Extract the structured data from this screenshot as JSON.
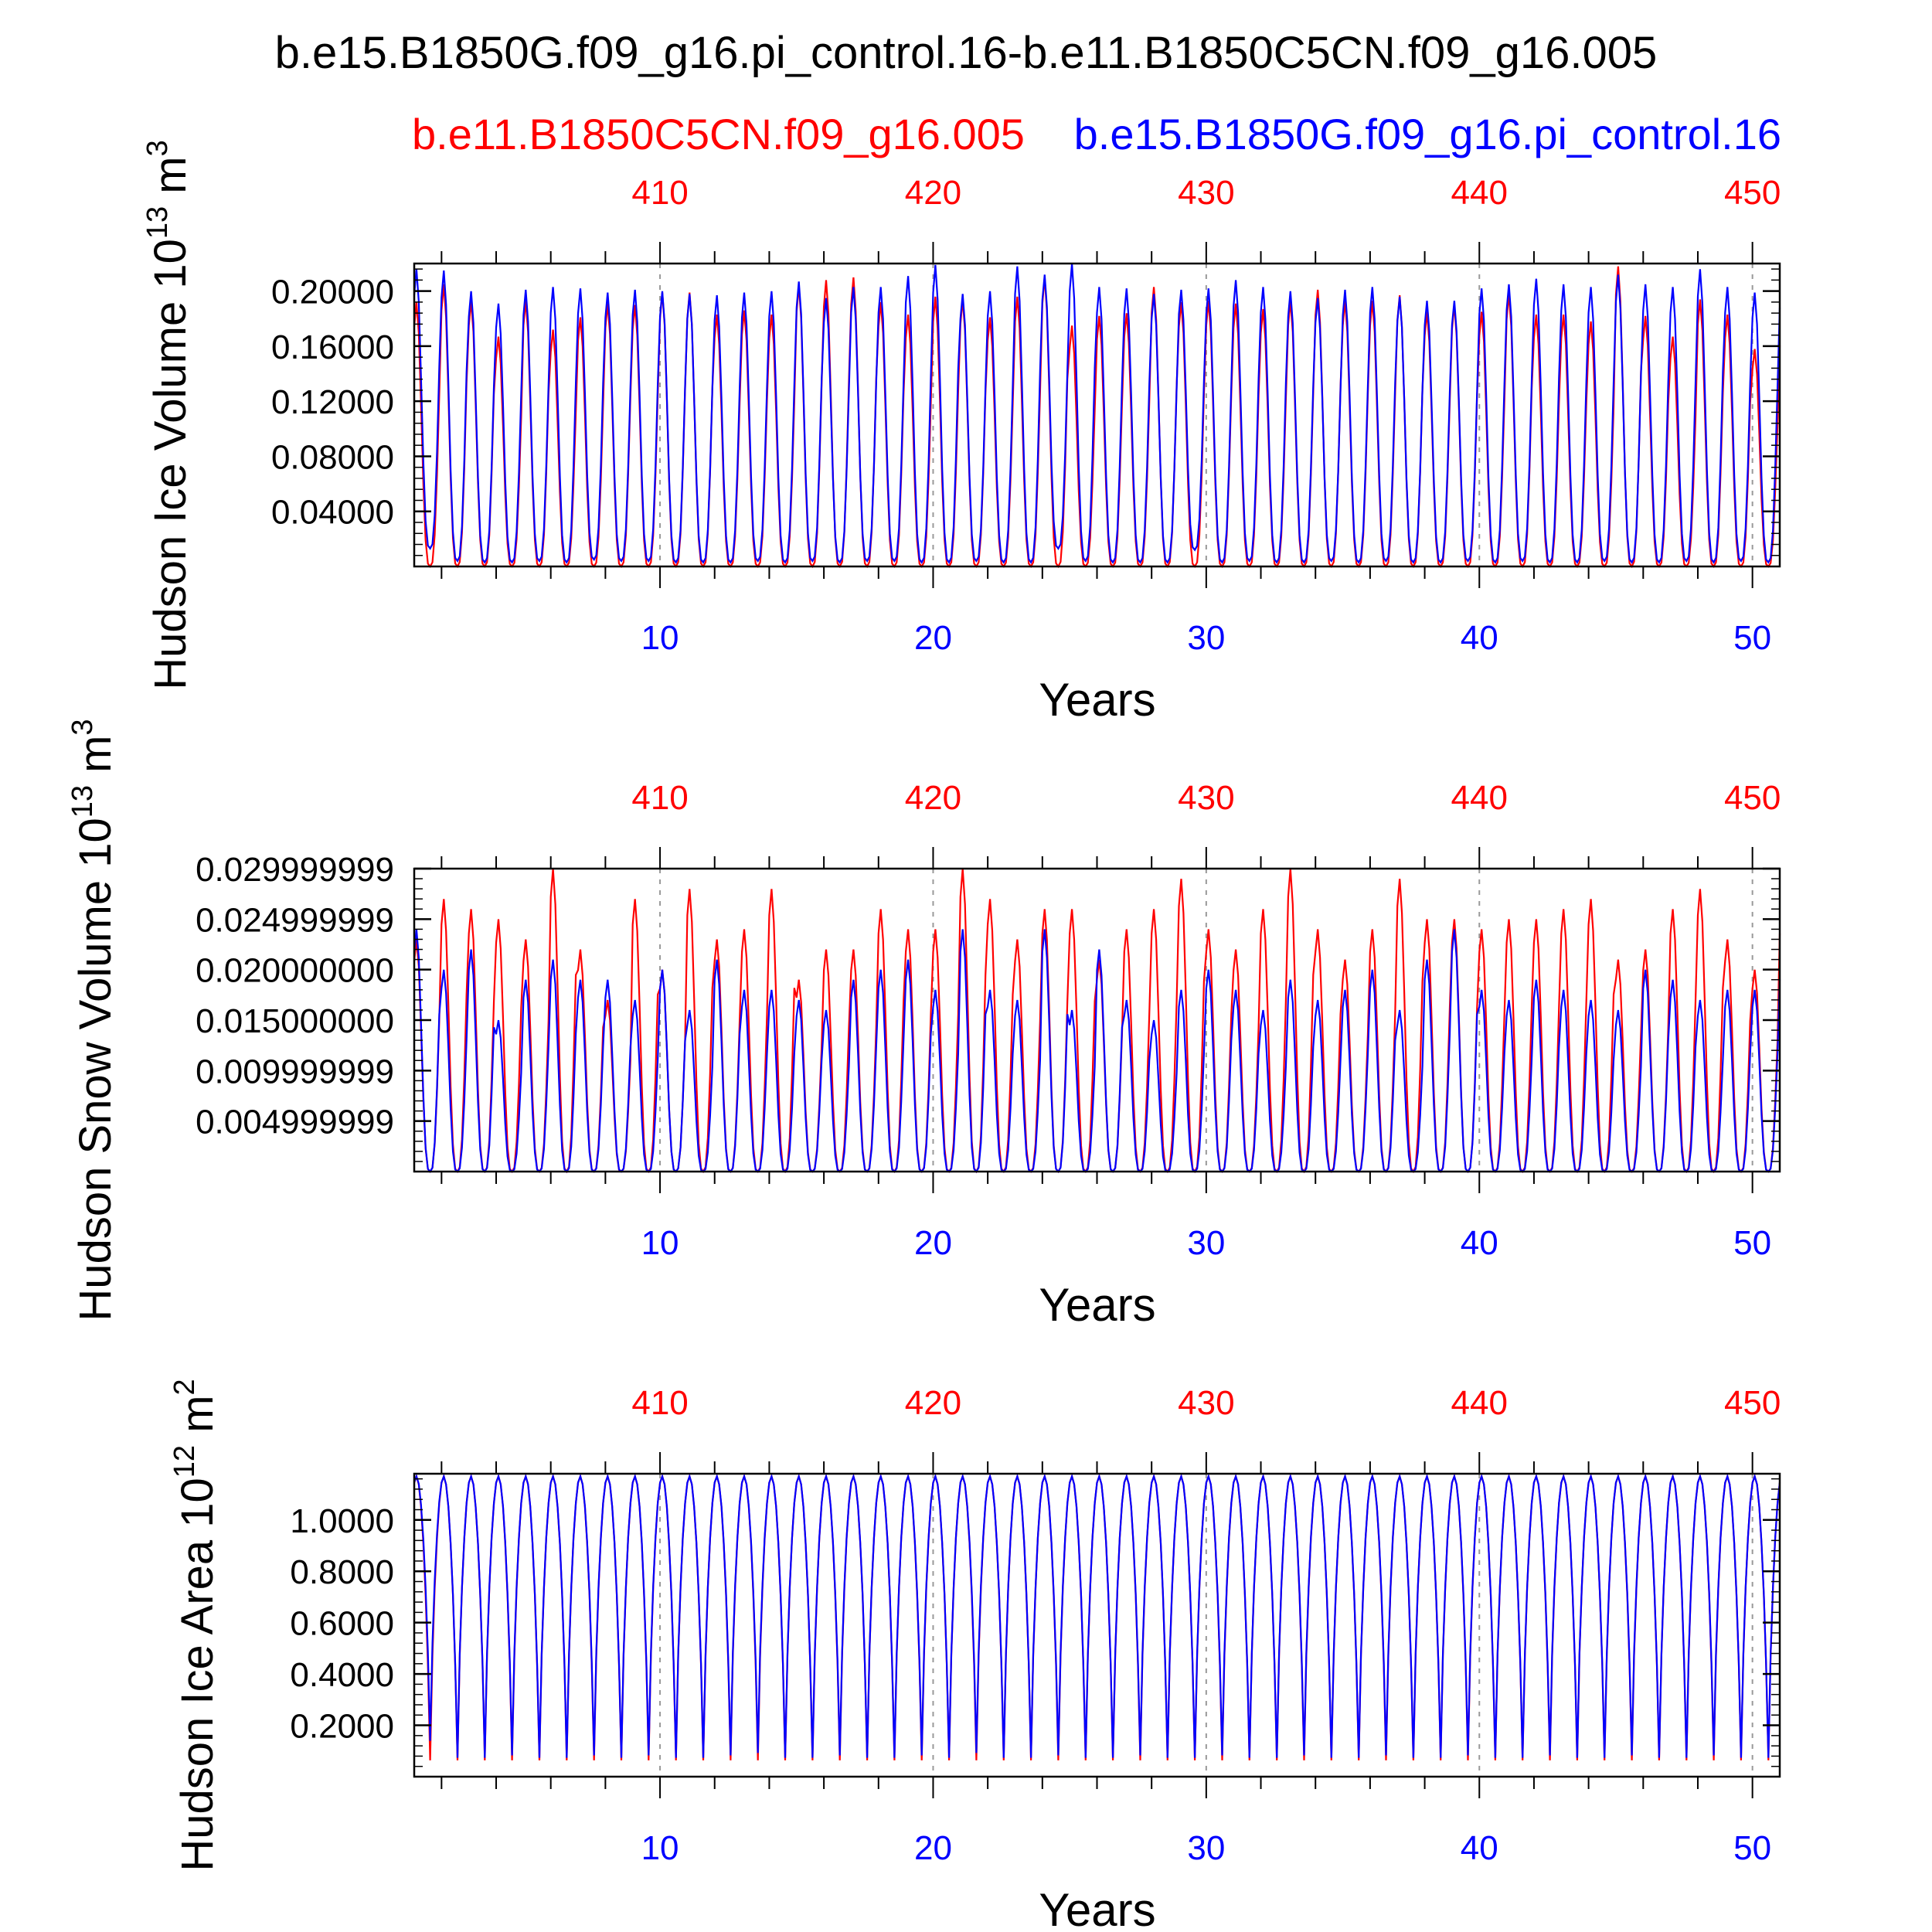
{
  "page": {
    "title": "b.e15.B1850G.f09_g16.pi_control.16-b.e11.B1850C5CN.f09_g16.005",
    "legend_red": "b.e11.B1850C5CN.f09_g16.005",
    "legend_blue": "b.e15.B1850G.f09_g16.pi_control.16"
  },
  "colors": {
    "red": "#ff0000",
    "blue": "#0000ff",
    "axis": "#000000",
    "grid": "#999999"
  },
  "chart_data": [
    {
      "type": "line",
      "name": "ice-volume",
      "ylabel_prefix": "Hudson Ice Volume 10",
      "ylabel_exp": "13",
      "ylabel_unit": " m",
      "ylabel_unit_exp": "3",
      "xlabel": "Years",
      "ylim": [
        0,
        0.22
      ],
      "yticks": [
        0.04,
        0.08,
        0.12,
        0.16,
        0.2
      ],
      "ytick_labels": [
        "0.04000",
        "0.08000",
        "0.12000",
        "0.16000",
        "0.20000"
      ],
      "xlim": [
        1,
        51
      ],
      "x_bottom_ticks": [
        10,
        20,
        30,
        40,
        50
      ],
      "x_top_tick_labels": [
        "410",
        "420",
        "430",
        "440",
        "450"
      ],
      "series": [
        {
          "name": "b.e11.B1850C5CN.f09_g16.005",
          "color": "red",
          "annual_max": [
            0.192,
            0.205,
            0.193,
            0.167,
            0.193,
            0.172,
            0.181,
            0.191,
            0.19,
            0.199,
            0.199,
            0.183,
            0.186,
            0.183,
            0.204,
            0.208,
            0.21,
            0.192,
            0.183,
            0.196,
            0.194,
            0.181,
            0.196,
            0.21,
            0.175,
            0.182,
            0.184,
            0.203,
            0.192,
            0.193,
            0.191,
            0.187,
            0.193,
            0.201,
            0.193,
            0.193,
            0.197,
            0.185,
            0.19,
            0.185,
            0.198,
            0.183,
            0.183,
            0.178,
            0.218,
            0.182,
            0.167,
            0.194,
            0.183,
            0.158,
            0.177
          ],
          "annual_min": [
            0.0,
            0.0,
            0.0,
            0.0,
            0.0,
            0.0,
            0.0,
            0.0,
            0.0,
            0.0,
            0.0,
            0.0,
            0.0,
            0.0,
            0.0,
            0.0,
            0.0,
            0.0,
            0.0,
            0.0,
            0.0,
            0.0,
            0.0,
            0.0,
            0.0,
            0.0,
            0.0,
            0.0,
            0.0,
            0.0,
            0.0,
            0.0,
            0.0,
            0.0,
            0.0,
            0.0,
            0.0,
            0.0,
            0.0,
            0.0,
            0.0,
            0.0,
            0.0,
            0.0,
            0.0,
            0.0,
            0.0,
            0.0,
            0.0,
            0.0,
            0.0
          ]
        },
        {
          "name": "b.e15.B1850G.f09_g16.pi_control.16",
          "color": "blue",
          "annual_max": [
            0.216,
            0.215,
            0.2,
            0.191,
            0.201,
            0.203,
            0.202,
            0.199,
            0.201,
            0.2,
            0.198,
            0.197,
            0.199,
            0.2,
            0.207,
            0.195,
            0.203,
            0.203,
            0.211,
            0.219,
            0.198,
            0.2,
            0.218,
            0.212,
            0.22,
            0.203,
            0.202,
            0.198,
            0.201,
            0.202,
            0.208,
            0.203,
            0.2,
            0.195,
            0.201,
            0.203,
            0.196,
            0.193,
            0.193,
            0.202,
            0.205,
            0.209,
            0.205,
            0.203,
            0.212,
            0.205,
            0.203,
            0.216,
            0.203,
            0.199,
            0.207
          ],
          "annual_min": [
            0.013,
            0.004,
            0.003,
            0.003,
            0.004,
            0.003,
            0.005,
            0.004,
            0.004,
            0.003,
            0.003,
            0.003,
            0.004,
            0.003,
            0.004,
            0.003,
            0.004,
            0.004,
            0.003,
            0.003,
            0.004,
            0.003,
            0.003,
            0.013,
            0.004,
            0.003,
            0.003,
            0.003,
            0.012,
            0.003,
            0.004,
            0.003,
            0.003,
            0.004,
            0.003,
            0.004,
            0.003,
            0.003,
            0.004,
            0.003,
            0.004,
            0.003,
            0.003,
            0.004,
            0.003,
            0.003,
            0.004,
            0.003,
            0.004,
            0.003,
            0.004
          ]
        }
      ]
    },
    {
      "type": "line",
      "name": "snow-volume",
      "ylabel_prefix": "Hudson Snow Volume 10",
      "ylabel_exp": "13",
      "ylabel_unit": " m",
      "ylabel_unit_exp": "3",
      "xlabel": "Years",
      "ylim": [
        0,
        0.03
      ],
      "yticks": [
        0.005,
        0.01,
        0.015,
        0.02,
        0.025,
        0.03
      ],
      "ytick_labels": [
        "0.004999999",
        "0.009999999",
        "0.015000000",
        "0.020000000",
        "0.024999999",
        "0.029999999"
      ],
      "xlim": [
        1,
        51
      ],
      "x_bottom_ticks": [
        10,
        20,
        30,
        40,
        50
      ],
      "x_top_tick_labels": [
        "410",
        "420",
        "430",
        "440",
        "450"
      ],
      "series": [
        {
          "name": "b.e11.B1850C5CN.f09_g16.005",
          "color": "red",
          "annual_max": [
            0.023,
            0.027,
            0.026,
            0.025,
            0.023,
            0.03,
            0.022,
            0.017,
            0.027,
            0.02,
            0.028,
            0.023,
            0.024,
            0.028,
            0.019,
            0.022,
            0.022,
            0.026,
            0.024,
            0.024,
            0.03,
            0.027,
            0.023,
            0.026,
            0.026,
            0.021,
            0.024,
            0.026,
            0.029,
            0.024,
            0.022,
            0.026,
            0.03,
            0.024,
            0.021,
            0.024,
            0.029,
            0.025,
            0.025,
            0.024,
            0.025,
            0.025,
            0.026,
            0.027,
            0.021,
            0.022,
            0.026,
            0.028,
            0.023,
            0.02,
            0.026
          ],
          "annual_min": [
            0.0,
            0.0,
            0.0,
            0.0,
            0.0,
            0.0,
            0.0,
            0.0,
            0.0,
            0.0,
            0.0,
            0.0,
            0.0,
            0.0,
            0.0,
            0.0,
            0.0,
            0.0,
            0.0,
            0.0,
            0.0,
            0.0,
            0.0,
            0.0,
            0.0,
            0.0,
            0.0,
            0.0,
            0.0,
            0.0,
            0.0,
            0.0,
            0.0,
            0.0,
            0.0,
            0.0,
            0.0,
            0.0,
            0.0,
            0.0,
            0.0,
            0.0,
            0.0,
            0.0,
            0.0,
            0.0,
            0.0,
            0.0,
            0.0,
            0.0,
            0.0
          ]
        },
        {
          "name": "b.e15.B1850G.f09_g16.pi_control.16",
          "color": "blue",
          "annual_max": [
            0.024,
            0.02,
            0.022,
            0.015,
            0.019,
            0.021,
            0.019,
            0.019,
            0.017,
            0.02,
            0.016,
            0.021,
            0.018,
            0.018,
            0.017,
            0.016,
            0.019,
            0.02,
            0.021,
            0.018,
            0.024,
            0.018,
            0.017,
            0.024,
            0.016,
            0.022,
            0.017,
            0.015,
            0.018,
            0.02,
            0.018,
            0.016,
            0.019,
            0.017,
            0.018,
            0.02,
            0.016,
            0.021,
            0.024,
            0.018,
            0.017,
            0.019,
            0.018,
            0.017,
            0.016,
            0.02,
            0.019,
            0.017,
            0.018,
            0.018,
            0.021
          ],
          "annual_min": [
            0.0,
            0.0,
            0.0,
            0.0,
            0.0,
            0.0,
            0.0,
            0.0,
            0.0,
            0.0,
            0.0,
            0.0,
            0.0,
            0.0,
            0.0,
            0.0,
            0.0,
            0.0,
            0.0,
            0.0,
            0.0,
            0.0,
            0.0,
            0.0,
            0.0,
            0.0,
            0.0,
            0.0,
            0.0,
            0.0,
            0.0,
            0.0,
            0.0,
            0.0,
            0.0,
            0.0,
            0.0,
            0.0,
            0.0,
            0.0,
            0.0,
            0.0,
            0.0,
            0.0,
            0.0,
            0.0,
            0.0,
            0.0,
            0.0,
            0.0,
            0.0
          ]
        }
      ]
    },
    {
      "type": "line",
      "name": "ice-area",
      "ylabel_prefix": "Hudson Ice Area 10",
      "ylabel_exp": "12",
      "ylabel_unit": " m",
      "ylabel_unit_exp": "2",
      "xlabel": "Years",
      "ylim": [
        0,
        1.18
      ],
      "yticks": [
        0.2,
        0.4,
        0.6,
        0.8,
        1.0
      ],
      "ytick_labels": [
        "0.2000",
        "0.4000",
        "0.6000",
        "0.8000",
        "1.0000"
      ],
      "xlim": [
        1,
        51
      ],
      "x_bottom_ticks": [
        10,
        20,
        30,
        40,
        50
      ],
      "x_top_tick_labels": [
        "410",
        "420",
        "430",
        "440",
        "450"
      ],
      "series": [
        {
          "name": "b.e11.B1850C5CN.f09_g16.005",
          "color": "red",
          "annual_max": [
            1.17,
            1.17,
            1.17,
            1.17,
            1.17,
            1.17,
            1.17,
            1.17,
            1.17,
            1.17,
            1.17,
            1.17,
            1.17,
            1.17,
            1.17,
            1.17,
            1.17,
            1.17,
            1.17,
            1.17,
            1.17,
            1.17,
            1.17,
            1.17,
            1.17,
            1.17,
            1.17,
            1.17,
            1.17,
            1.17,
            1.17,
            1.17,
            1.17,
            1.17,
            1.17,
            1.17,
            1.17,
            1.17,
            1.17,
            1.17,
            1.17,
            1.17,
            1.17,
            1.17,
            1.17,
            1.17,
            1.17,
            1.17,
            1.17,
            1.17,
            1.17
          ],
          "annual_min": [
            0.0,
            0.0,
            0.0,
            0.0,
            0.0,
            0.0,
            0.0,
            0.0,
            0.0,
            0.0,
            0.0,
            0.0,
            0.0,
            0.0,
            0.0,
            0.0,
            0.0,
            0.0,
            0.0,
            0.0,
            0.0,
            0.0,
            0.0,
            0.0,
            0.0,
            0.0,
            0.0,
            0.0,
            0.0,
            0.0,
            0.0,
            0.0,
            0.0,
            0.0,
            0.0,
            0.0,
            0.0,
            0.0,
            0.0,
            0.0,
            0.0,
            0.0,
            0.0,
            0.0,
            0.0,
            0.0,
            0.0,
            0.0,
            0.0,
            0.0,
            0.0
          ]
        },
        {
          "name": "b.e15.B1850G.f09_g16.pi_control.16",
          "color": "blue",
          "annual_max": [
            1.17,
            1.17,
            1.17,
            1.17,
            1.17,
            1.17,
            1.17,
            1.17,
            1.17,
            1.17,
            1.17,
            1.17,
            1.17,
            1.17,
            1.17,
            1.17,
            1.17,
            1.17,
            1.17,
            1.17,
            1.17,
            1.17,
            1.17,
            1.17,
            1.17,
            1.17,
            1.17,
            1.17,
            1.17,
            1.17,
            1.17,
            1.17,
            1.17,
            1.17,
            1.17,
            1.17,
            1.17,
            1.17,
            1.17,
            1.17,
            1.17,
            1.17,
            1.17,
            1.17,
            1.17,
            1.17,
            1.17,
            1.17,
            1.17,
            1.17,
            1.17
          ],
          "annual_min": [
            0.08,
            0.01,
            0.01,
            0.02,
            0.01,
            0.01,
            0.02,
            0.01,
            0.02,
            0.01,
            0.01,
            0.02,
            0.03,
            0.01,
            0.01,
            0.02,
            0.01,
            0.01,
            0.02,
            0.01,
            0.03,
            0.01,
            0.01,
            0.02,
            0.01,
            0.01,
            0.02,
            0.01,
            0.01,
            0.02,
            0.01,
            0.01,
            0.02,
            0.01,
            0.01,
            0.02,
            0.01,
            0.01,
            0.02,
            0.01,
            0.01,
            0.02,
            0.01,
            0.01,
            0.02,
            0.01,
            0.01,
            0.02,
            0.01,
            0.01,
            0.02
          ]
        }
      ]
    }
  ]
}
